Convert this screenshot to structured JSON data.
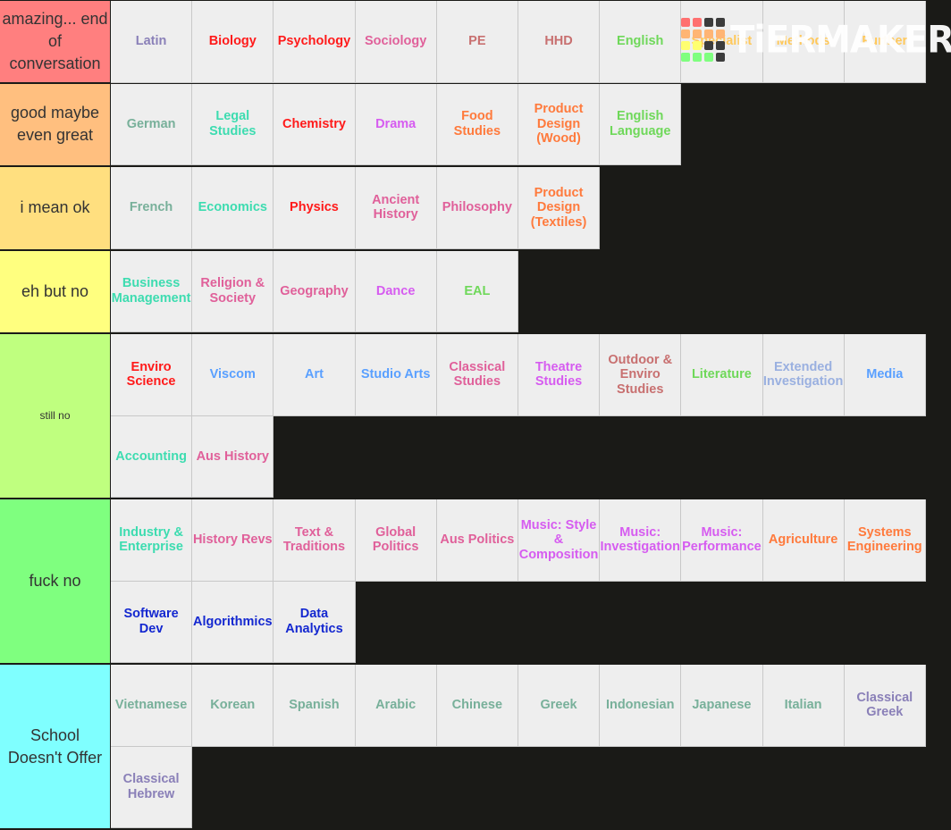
{
  "logo": {
    "text": "TiERMAKER",
    "grid": [
      "#ff7070",
      "#ff7070",
      "#3c3c3c",
      "#3c3c3c",
      "#ffb574",
      "#ffb574",
      "#ffb574",
      "#ffb574",
      "#ffff70",
      "#ffff70",
      "#3c3c3c",
      "#3c3c3c",
      "#7fff7f",
      "#7fff7f",
      "#7fff7f",
      "#3c3c3c"
    ]
  },
  "tiers": [
    {
      "label": "amazing... end of conversation",
      "color": "#ff7f7f",
      "items": [
        {
          "name": "Latin",
          "color": "#8a80b8"
        },
        {
          "name": "Biology",
          "color": "#ff1a1a"
        },
        {
          "name": "Psychology",
          "color": "#ff1a1a"
        },
        {
          "name": "Sociology",
          "color": "#e0609a"
        },
        {
          "name": "PE",
          "color": "#c87070"
        },
        {
          "name": "HHD",
          "color": "#c87070"
        },
        {
          "name": "English",
          "color": "#6fd85a"
        },
        {
          "name": "Specialist",
          "color": "#ffc85a"
        },
        {
          "name": "Methods",
          "color": "#ffc85a"
        },
        {
          "name": "Further",
          "color": "#ffc85a"
        }
      ]
    },
    {
      "label": "good maybe even great",
      "color": "#ffbf7f",
      "items": [
        {
          "name": "German",
          "color": "#78b09a"
        },
        {
          "name": "Legal Studies",
          "color": "#3ddcb0"
        },
        {
          "name": "Chemistry",
          "color": "#ff1a1a"
        },
        {
          "name": "Drama",
          "color": "#d65cf0"
        },
        {
          "name": "Food Studies",
          "color": "#ff7a3c"
        },
        {
          "name": "Product Design (Wood)",
          "color": "#ff7a3c"
        },
        {
          "name": "English Language",
          "color": "#6fd85a"
        }
      ]
    },
    {
      "label": "i mean ok",
      "color": "#ffdf7f",
      "items": [
        {
          "name": "French",
          "color": "#78b09a"
        },
        {
          "name": "Economics",
          "color": "#3ddcb0"
        },
        {
          "name": "Physics",
          "color": "#ff1a1a"
        },
        {
          "name": "Ancient History",
          "color": "#e0609a"
        },
        {
          "name": "Philosophy",
          "color": "#e0609a"
        },
        {
          "name": "Product Design (Textiles)",
          "color": "#ff7a3c"
        }
      ]
    },
    {
      "label": "eh but no",
      "color": "#ffff7f",
      "items": [
        {
          "name": "Business Management",
          "color": "#3ddcb0"
        },
        {
          "name": "Religion & Society",
          "color": "#e0609a"
        },
        {
          "name": "Geography",
          "color": "#e0609a"
        },
        {
          "name": "Dance",
          "color": "#d65cf0"
        },
        {
          "name": "EAL",
          "color": "#6fd85a"
        }
      ]
    },
    {
      "label": "still no",
      "small": true,
      "color": "#bfff7f",
      "items": [
        {
          "name": "Enviro Science",
          "color": "#ff1a1a"
        },
        {
          "name": "Viscom",
          "color": "#5aa0ff"
        },
        {
          "name": "Art",
          "color": "#5aa0ff"
        },
        {
          "name": "Studio Arts",
          "color": "#5aa0ff"
        },
        {
          "name": "Classical Studies",
          "color": "#e0609a"
        },
        {
          "name": "Theatre Studies",
          "color": "#d65cf0"
        },
        {
          "name": "Outdoor & Enviro Studies",
          "color": "#c87070"
        },
        {
          "name": "Literature",
          "color": "#6fd85a"
        },
        {
          "name": "Extended Investigation",
          "color": "#9ab0e0"
        },
        {
          "name": "Media",
          "color": "#5aa0ff"
        },
        {
          "name": "Accounting",
          "color": "#3ddcb0"
        },
        {
          "name": "Aus History",
          "color": "#e0609a"
        }
      ]
    },
    {
      "label": "fuck no",
      "color": "#7fff7f",
      "items": [
        {
          "name": "Industry & Enterprise",
          "color": "#3ddcb0"
        },
        {
          "name": "History Revs",
          "color": "#e0609a"
        },
        {
          "name": "Text & Traditions",
          "color": "#e0609a"
        },
        {
          "name": "Global Politics",
          "color": "#e0609a"
        },
        {
          "name": "Aus Politics",
          "color": "#e0609a"
        },
        {
          "name": "Music: Style & Composition",
          "color": "#d65cf0"
        },
        {
          "name": "Music: Investigation",
          "color": "#d65cf0"
        },
        {
          "name": "Music: Performance",
          "color": "#d65cf0"
        },
        {
          "name": "Agriculture",
          "color": "#ff7a3c"
        },
        {
          "name": "Systems Engineering",
          "color": "#ff7a3c"
        },
        {
          "name": "Software Dev",
          "color": "#1428d0"
        },
        {
          "name": "Algorithmics",
          "color": "#1428d0"
        },
        {
          "name": "Data Analytics",
          "color": "#1428d0"
        }
      ]
    },
    {
      "label": "School Doesn't Offer",
      "color": "#7fffff",
      "items": [
        {
          "name": "Vietnamese",
          "color": "#78b09a"
        },
        {
          "name": "Korean",
          "color": "#78b09a"
        },
        {
          "name": "Spanish",
          "color": "#78b09a"
        },
        {
          "name": "Arabic",
          "color": "#78b09a"
        },
        {
          "name": "Chinese",
          "color": "#78b09a"
        },
        {
          "name": "Greek",
          "color": "#78b09a"
        },
        {
          "name": "Indonesian",
          "color": "#78b09a"
        },
        {
          "name": "Japanese",
          "color": "#78b09a"
        },
        {
          "name": "Italian",
          "color": "#78b09a"
        },
        {
          "name": "Classical Greek",
          "color": "#8a80b8"
        },
        {
          "name": "Classical Hebrew",
          "color": "#8a80b8"
        }
      ]
    }
  ]
}
